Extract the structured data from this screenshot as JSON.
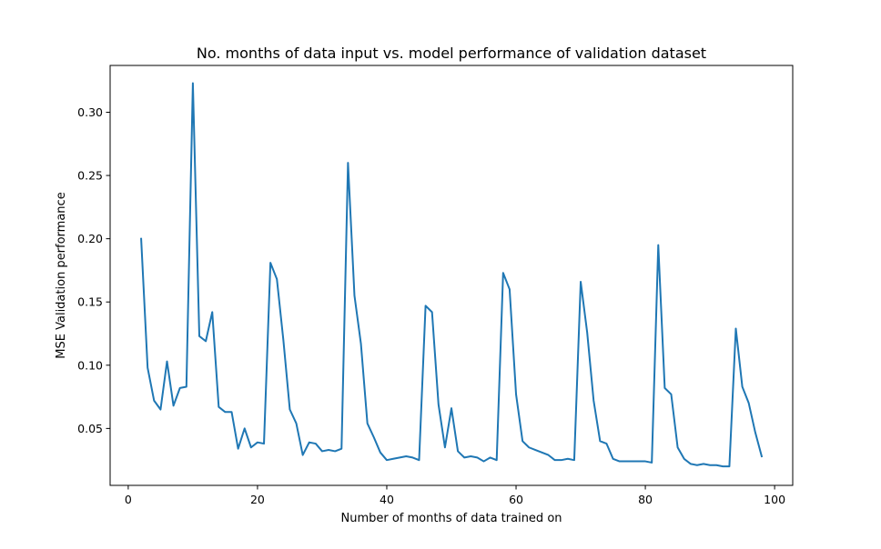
{
  "chart_data": {
    "type": "line",
    "title": "No. months of data input vs. model performance of validation dataset",
    "xlabel": "Number of months of data trained on",
    "ylabel": "MSE Validation performance",
    "xlim": [
      -2.8,
      102.8
    ],
    "ylim": [
      0.005,
      0.337
    ],
    "xticks": [
      {
        "value": 0,
        "label": "0"
      },
      {
        "value": 20,
        "label": "20"
      },
      {
        "value": 40,
        "label": "40"
      },
      {
        "value": 60,
        "label": "60"
      },
      {
        "value": 80,
        "label": "80"
      },
      {
        "value": 100,
        "label": "100"
      }
    ],
    "yticks": [
      {
        "value": 0.05,
        "label": "0.05"
      },
      {
        "value": 0.1,
        "label": "0.10"
      },
      {
        "value": 0.15,
        "label": "0.15"
      },
      {
        "value": 0.2,
        "label": "0.20"
      },
      {
        "value": 0.25,
        "label": "0.25"
      },
      {
        "value": 0.3,
        "label": "0.30"
      }
    ],
    "grid": false,
    "series": [
      {
        "color": "#1f77b4",
        "x": [
          2,
          3,
          4,
          5,
          6,
          7,
          8,
          9,
          10,
          11,
          12,
          13,
          14,
          15,
          16,
          17,
          18,
          19,
          20,
          21,
          22,
          23,
          24,
          25,
          26,
          27,
          28,
          29,
          30,
          31,
          32,
          33,
          34,
          35,
          36,
          37,
          38,
          39,
          40,
          41,
          42,
          43,
          44,
          45,
          46,
          47,
          48,
          49,
          50,
          51,
          52,
          53,
          54,
          55,
          56,
          57,
          58,
          59,
          60,
          61,
          62,
          63,
          64,
          65,
          66,
          67,
          68,
          69,
          70,
          71,
          72,
          73,
          74,
          75,
          76,
          77,
          78,
          79,
          80,
          81,
          82,
          83,
          84,
          85,
          86,
          87,
          88,
          89,
          90,
          91,
          92,
          93,
          94,
          95,
          96,
          97,
          98
        ],
        "y": [
          0.2,
          0.098,
          0.072,
          0.065,
          0.103,
          0.068,
          0.082,
          0.083,
          0.323,
          0.123,
          0.119,
          0.142,
          0.067,
          0.063,
          0.063,
          0.034,
          0.05,
          0.035,
          0.039,
          0.038,
          0.181,
          0.168,
          0.12,
          0.065,
          0.054,
          0.029,
          0.039,
          0.038,
          0.032,
          0.033,
          0.032,
          0.034,
          0.26,
          0.155,
          0.117,
          0.054,
          0.043,
          0.031,
          0.025,
          0.026,
          0.027,
          0.028,
          0.027,
          0.025,
          0.147,
          0.142,
          0.069,
          0.035,
          0.066,
          0.032,
          0.027,
          0.028,
          0.027,
          0.024,
          0.027,
          0.025,
          0.173,
          0.16,
          0.077,
          0.04,
          0.035,
          0.033,
          0.031,
          0.029,
          0.025,
          0.025,
          0.026,
          0.025,
          0.166,
          0.126,
          0.072,
          0.04,
          0.038,
          0.026,
          0.024,
          0.024,
          0.024,
          0.024,
          0.024,
          0.023,
          0.195,
          0.082,
          0.077,
          0.035,
          0.026,
          0.022,
          0.021,
          0.022,
          0.021,
          0.021,
          0.02,
          0.02,
          0.129,
          0.083,
          0.07,
          0.047,
          0.028
        ]
      }
    ]
  }
}
